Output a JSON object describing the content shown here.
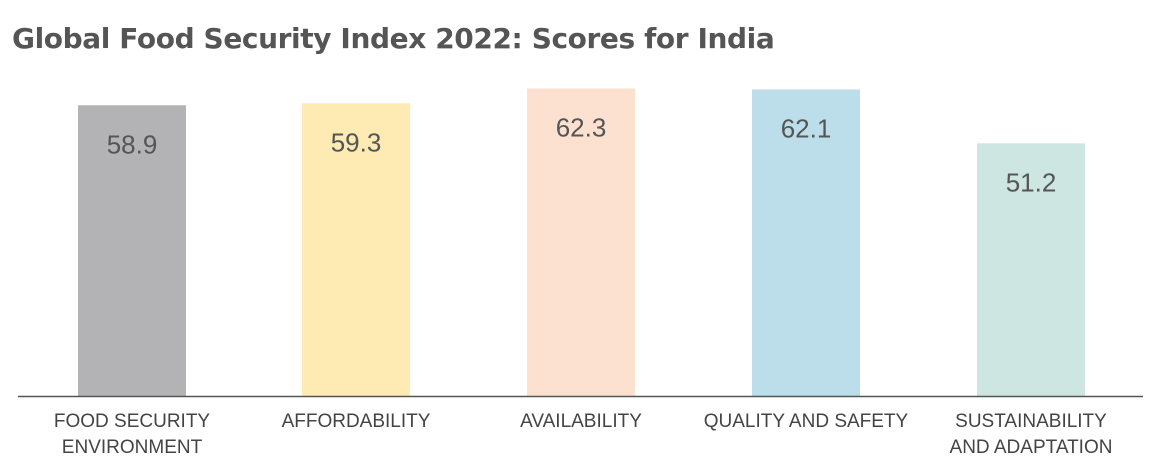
{
  "chart_data": {
    "type": "bar",
    "title": "Global Food Security Index 2022: Scores for India",
    "categories": [
      [
        "FOOD SECURITY",
        "ENVIRONMENT"
      ],
      [
        "AFFORDABILITY"
      ],
      [
        "AVAILABILITY"
      ],
      [
        "QUALITY AND SAFETY"
      ],
      [
        "SUSTAINABILITY",
        "AND ADAPTATION"
      ]
    ],
    "values": [
      58.9,
      59.3,
      62.3,
      62.1,
      51.2
    ],
    "value_labels": [
      "58.9",
      "59.3",
      "62.3",
      "62.1",
      "51.2"
    ],
    "colors": [
      "#b3b3b5",
      "#fdebb3",
      "#fce0d0",
      "#bcdeea",
      "#cde6e1"
    ],
    "axis_color": "#555555",
    "grid": false,
    "legend": "none"
  }
}
